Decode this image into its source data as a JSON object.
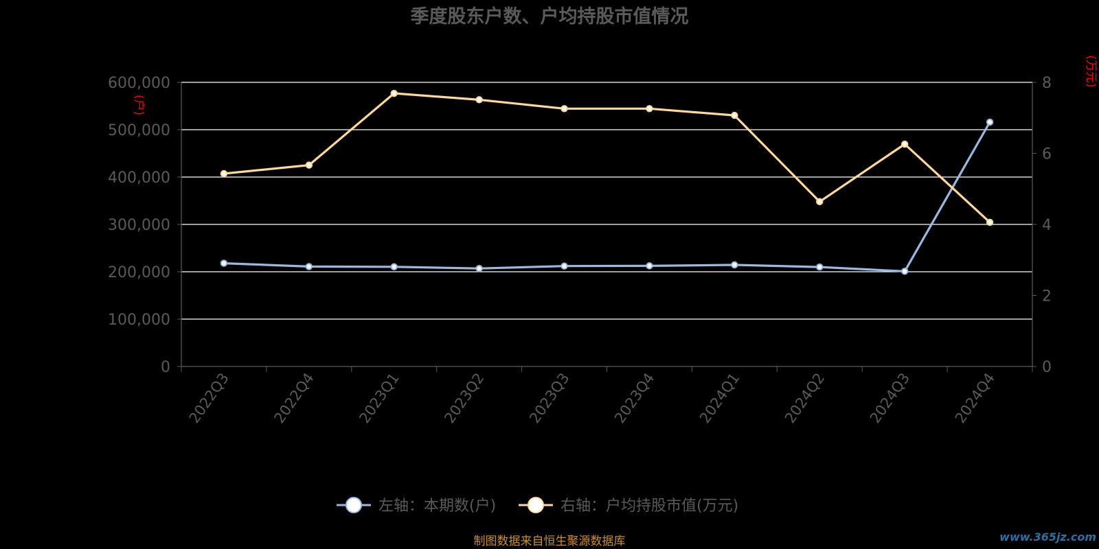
{
  "title": "季度股东户数、户均持股市值情况",
  "colors": {
    "background": "#000000",
    "grid": "#ffffff",
    "axis": "#5a5a5a",
    "text": "#5a5a5a",
    "unit": "#ff0000",
    "source": "#c8902a"
  },
  "chart_data": {
    "type": "line",
    "title": "季度股东户数、户均持股市值情况",
    "categories": [
      "2022Q3",
      "2022Q4",
      "2023Q1",
      "2023Q2",
      "2023Q3",
      "2023Q4",
      "2024Q1",
      "2024Q2",
      "2024Q3",
      "2024Q4"
    ],
    "y_left": {
      "unit": "(户)",
      "ylim": [
        0,
        600000
      ],
      "ticks": [
        "0",
        "100,000",
        "200,000",
        "300,000",
        "400,000",
        "500,000",
        "600,000"
      ]
    },
    "y_right": {
      "unit": "(万元)",
      "ylim": [
        0,
        8
      ],
      "ticks": [
        "0",
        "2",
        "4",
        "6",
        "8"
      ]
    },
    "series": [
      {
        "name": "左轴：本期数(户)",
        "axis": "left",
        "color": "#9bb8e0",
        "values": [
          218000,
          211000,
          210500,
          207000,
          212000,
          212500,
          214500,
          210000,
          201000,
          516000
        ]
      },
      {
        "name": "右轴：户均持股市值(万元)",
        "axis": "right",
        "color": "#ffd99a",
        "values": [
          5.43,
          5.67,
          7.69,
          7.51,
          7.26,
          7.26,
          7.07,
          4.64,
          6.26,
          4.06
        ]
      }
    ],
    "grid": true,
    "legend": "bottom-center"
  },
  "source": "制图数据来自恒生聚源数据库",
  "watermark": "www.365jz.com"
}
